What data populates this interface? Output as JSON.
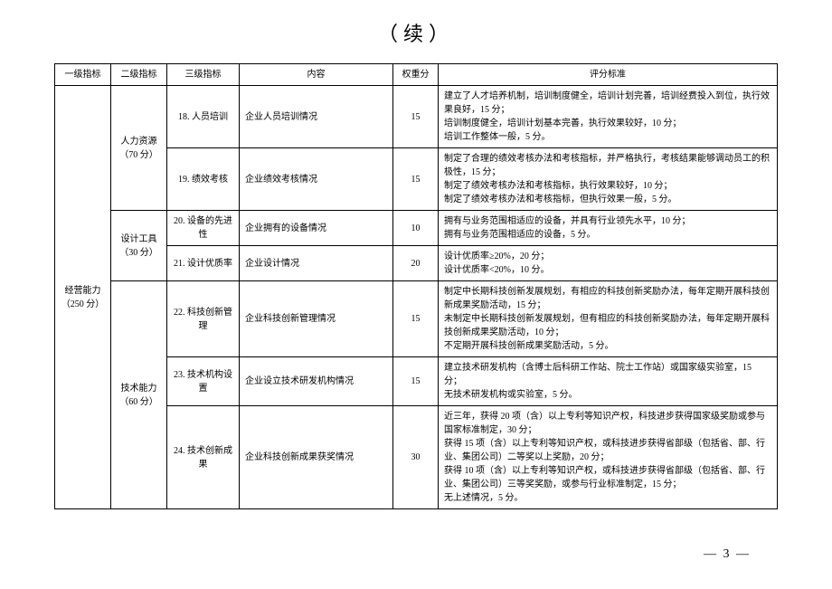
{
  "title": "（续）",
  "headers": {
    "l1": "一级指标",
    "l2": "二级指标",
    "l3": "三级指标",
    "content": "内容",
    "weight": "权重分",
    "criteria": "评分标准"
  },
  "l1": {
    "label": "经营能力\n（250 分）"
  },
  "l2": {
    "hr": "人力资源\n（70 分）",
    "tool": "设计工具\n（30 分）",
    "tech": "技术能力\n（60 分）"
  },
  "rows": [
    {
      "l3": "18. 人员培训",
      "content": "企业人员培训情况",
      "weight": "15",
      "criteria": "建立了人才培养机制，培训制度健全，培训计划完善，培训经费投入到位，执行效果良好，15 分；\n培训制度健全，培训计划基本完善，执行效果较好，10 分；\n培训工作整体一般，5 分。"
    },
    {
      "l3": "19. 绩效考核",
      "content": "企业绩效考核情况",
      "weight": "15",
      "criteria": "制定了合理的绩效考核办法和考核指标，并严格执行，考核结果能够调动员工的积极性，15 分；\n制定了绩效考核办法和考核指标，执行效果较好，10 分；\n制定了绩效考核办法和考核指标，但执行效果一般，5 分。"
    },
    {
      "l3": "20. 设备的先进性",
      "content": "企业拥有的设备情况",
      "weight": "10",
      "criteria": "拥有与业务范围相适应的设备，并具有行业领先水平，10 分；\n拥有与业务范围相适应的设备，5 分。"
    },
    {
      "l3": "21. 设计优质率",
      "content": "企业设计情况",
      "weight": "20",
      "criteria": "设计优质率≥20%，20 分；\n设计优质率<20%，10 分。"
    },
    {
      "l3": "22. 科技创新管理",
      "content": "企业科技创新管理情况",
      "weight": "15",
      "criteria": "制定中长期科技创新发展规划，有相应的科技创新奖励办法，每年定期开展科技创新成果奖励活动，15 分；\n未制定中长期科技创新发展规划，但有相应的科技创新奖励办法，每年定期开展科技创新成果奖励活动，10 分；\n不定期开展科技创新成果奖励活动，5 分。"
    },
    {
      "l3": "23. 技术机构设置",
      "content": "企业设立技术研发机构情况",
      "weight": "15",
      "criteria": "建立技术研发机构（含博士后科研工作站、院士工作站）或国家级实验室，15 分；\n无技术研发机构或实验室，5 分。"
    },
    {
      "l3": "24. 技术创新成果",
      "content": "企业科技创新成果获奖情况",
      "weight": "30",
      "criteria": "近三年，获得 20 项（含）以上专利等知识产权，科技进步获得国家级奖励或参与国家标准制定，30 分；\n获得 15 项（含）以上专利等知识产权，或科技进步获得省部级（包括省、部、行业、集团公司）二等奖以上奖励，20 分；\n获得 10 项（含）以上专利等知识产权，或科技进步获得省部级（包括省、部、行业、集团公司）三等奖奖励，或参与行业标准制定，15 分；\n无上述情况，5 分。"
    }
  ],
  "page_number": "— 3 —"
}
